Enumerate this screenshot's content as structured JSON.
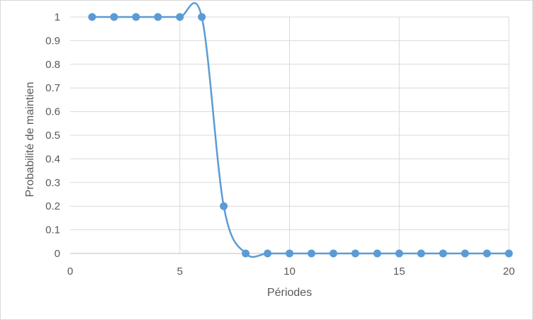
{
  "chart_data": {
    "type": "scatter",
    "title": "",
    "xlabel": "Périodes",
    "ylabel": "Probabilité de maintien",
    "xlim": [
      0,
      20
    ],
    "ylim": [
      0,
      1
    ],
    "x_ticks": [
      "0",
      "5",
      "10",
      "15",
      "20"
    ],
    "y_ticks": [
      "0",
      "0.1",
      "0.2",
      "0.3",
      "0.4",
      "0.5",
      "0.6",
      "0.7",
      "0.8",
      "0.9",
      "1"
    ],
    "grid": true,
    "legend": "none",
    "smooth_line": true,
    "series": [
      {
        "color": "#5b9bd5",
        "points": [
          [
            1,
            1
          ],
          [
            2,
            1
          ],
          [
            3,
            1
          ],
          [
            4,
            1
          ],
          [
            5,
            1
          ],
          [
            6,
            1
          ],
          [
            7,
            0.2
          ],
          [
            8,
            0
          ],
          [
            9,
            0
          ],
          [
            10,
            0
          ],
          [
            11,
            0
          ],
          [
            12,
            0
          ],
          [
            13,
            0
          ],
          [
            14,
            0
          ],
          [
            15,
            0
          ],
          [
            16,
            0
          ],
          [
            17,
            0
          ],
          [
            18,
            0
          ],
          [
            19,
            0
          ],
          [
            20,
            0
          ]
        ]
      }
    ]
  }
}
